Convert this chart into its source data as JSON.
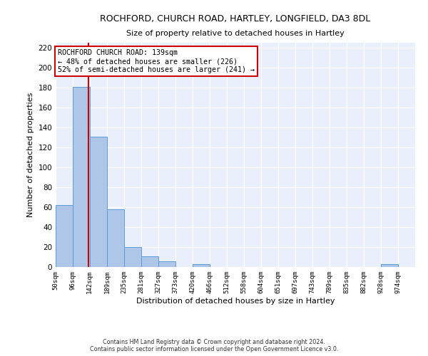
{
  "title_line1": "ROCHFORD, CHURCH ROAD, HARTLEY, LONGFIELD, DA3 8DL",
  "title_line2": "Size of property relative to detached houses in Hartley",
  "xlabel": "Distribution of detached houses by size in Hartley",
  "ylabel": "Number of detached properties",
  "footer_line1": "Contains HM Land Registry data © Crown copyright and database right 2024.",
  "footer_line2": "Contains public sector information licensed under the Open Government Licence v3.0.",
  "annotation_line1": "ROCHFORD CHURCH ROAD: 139sqm",
  "annotation_line2": "← 48% of detached houses are smaller (226)",
  "annotation_line3": "52% of semi-detached houses are larger (241) →",
  "bar_edges": [
    50,
    96,
    142,
    189,
    235,
    281,
    327,
    373,
    420,
    466,
    512,
    558,
    604,
    651,
    697,
    743,
    789,
    835,
    882,
    928,
    974
  ],
  "bar_heights": [
    62,
    181,
    131,
    58,
    20,
    11,
    6,
    0,
    3,
    0,
    0,
    0,
    0,
    0,
    0,
    0,
    0,
    0,
    0,
    3,
    0
  ],
  "property_size": 139,
  "bar_color": "#aec6e8",
  "bar_edge_color": "#5b9bd5",
  "vline_color": "#cc0000",
  "vline_x": 139,
  "ylim": [
    0,
    225
  ],
  "yticks": [
    0,
    20,
    40,
    60,
    80,
    100,
    120,
    140,
    160,
    180,
    200,
    220
  ],
  "tick_labels": [
    "50sqm",
    "96sqm",
    "142sqm",
    "189sqm",
    "235sqm",
    "281sqm",
    "327sqm",
    "373sqm",
    "420sqm",
    "466sqm",
    "512sqm",
    "558sqm",
    "604sqm",
    "651sqm",
    "697sqm",
    "743sqm",
    "789sqm",
    "835sqm",
    "882sqm",
    "928sqm",
    "974sqm"
  ],
  "background_color": "#eaf0fb",
  "annotation_box_color": "#ffffff",
  "annotation_box_edge": "#cc0000",
  "fig_width": 6.0,
  "fig_height": 5.0,
  "dpi": 100
}
